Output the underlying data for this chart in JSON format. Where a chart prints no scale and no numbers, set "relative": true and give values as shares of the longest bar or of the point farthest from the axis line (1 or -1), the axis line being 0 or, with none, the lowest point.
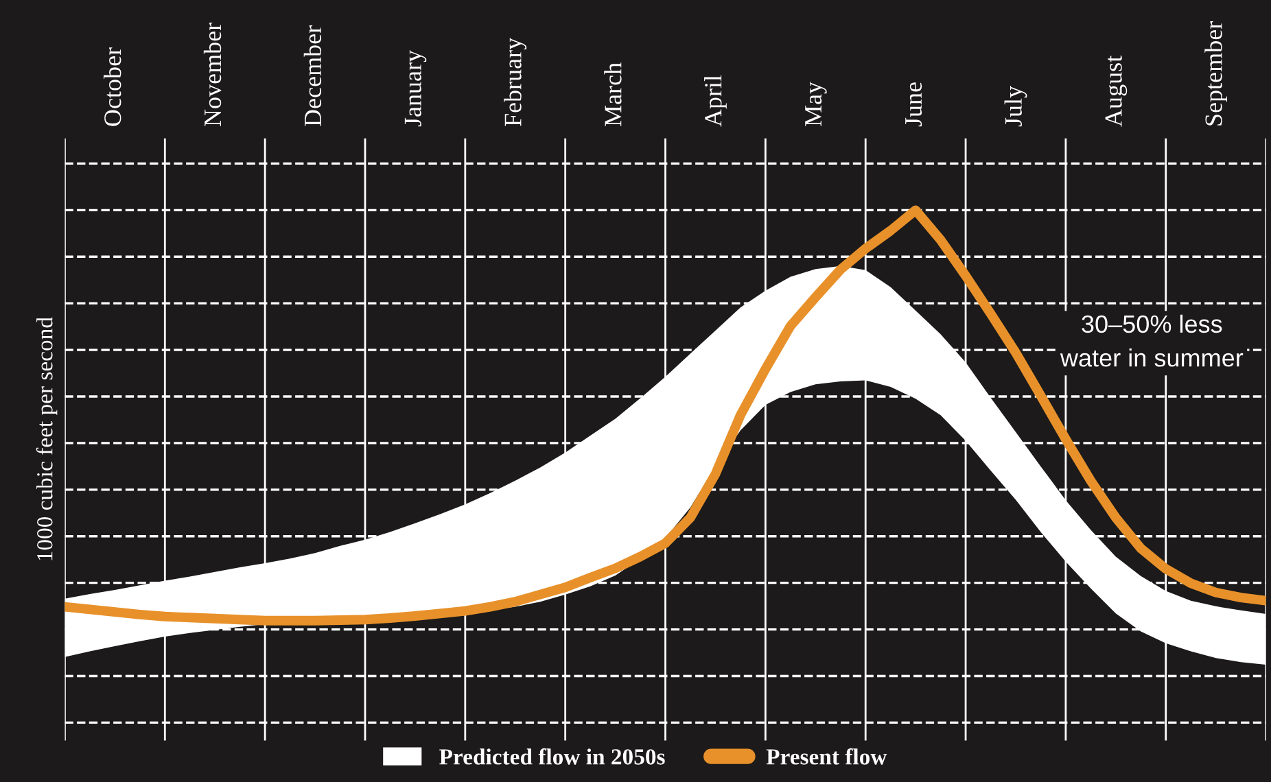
{
  "chart_data": {
    "type": "line",
    "relative": true,
    "ylabel": "1000 cubic feet per second",
    "categories": [
      null,
      null,
      "October",
      null,
      null,
      null,
      "November",
      null,
      null,
      null,
      "December",
      null,
      null,
      null,
      "January",
      null,
      null,
      null,
      "February",
      null,
      null,
      null,
      "March",
      null,
      null,
      null,
      "April",
      null,
      null,
      null,
      "May",
      null,
      null,
      null,
      "June",
      null,
      null,
      null,
      "July",
      null,
      null,
      null,
      "August",
      null,
      null,
      null,
      "September",
      null,
      null
    ],
    "series": [
      {
        "name": "Predicted flow in 2050s",
        "type": "area",
        "color": "#ffffff",
        "values": [
          null,
          null,
          null,
          null,
          null,
          null,
          null,
          null,
          null,
          null,
          null,
          null,
          null,
          null,
          null,
          null,
          null,
          null,
          null,
          null,
          null,
          null,
          null,
          null,
          null,
          null,
          null,
          null,
          null,
          null,
          null,
          null,
          null,
          null,
          null,
          null,
          null,
          null,
          null,
          null,
          null,
          null,
          null,
          null,
          null,
          null,
          null,
          null,
          null
        ],
        "lower": [
          0.128,
          0.139,
          0.149,
          0.159,
          0.168,
          0.175,
          0.181,
          0.187,
          0.192,
          0.195,
          0.197,
          0.198,
          0.199,
          0.202,
          0.205,
          0.209,
          0.213,
          0.219,
          0.226,
          0.236,
          0.25,
          0.266,
          0.287,
          0.32,
          0.36,
          0.42,
          0.5,
          0.57,
          0.62,
          0.645,
          0.66,
          0.666,
          0.668,
          0.655,
          0.632,
          0.6,
          0.55,
          0.492,
          0.435,
          0.372,
          0.314,
          0.262,
          0.213,
          0.178,
          0.155,
          0.139,
          0.126,
          0.118,
          0.113
        ],
        "upper": [
          0.242,
          0.251,
          0.259,
          0.268,
          0.277,
          0.285,
          0.294,
          0.303,
          0.311,
          0.32,
          0.331,
          0.345,
          0.357,
          0.372,
          0.389,
          0.407,
          0.426,
          0.448,
          0.472,
          0.498,
          0.527,
          0.56,
          0.593,
          0.633,
          0.675,
          0.72,
          0.765,
          0.81,
          0.843,
          0.87,
          0.885,
          0.891,
          0.883,
          0.85,
          0.804,
          0.758,
          0.703,
          0.634,
          0.567,
          0.5,
          0.434,
          0.376,
          0.324,
          0.286,
          0.257,
          0.238,
          0.227,
          0.219,
          0.212
        ]
      },
      {
        "name": "Present flow",
        "color": "#e8912a",
        "values": [
          0.226,
          0.221,
          0.216,
          0.211,
          0.207,
          0.205,
          0.203,
          0.201,
          0.199,
          0.199,
          0.199,
          0.2,
          0.201,
          0.204,
          0.208,
          0.213,
          0.218,
          0.226,
          0.236,
          0.25,
          0.264,
          0.283,
          0.301,
          0.324,
          0.35,
          0.4,
          0.485,
          0.6,
          0.69,
          0.774,
          0.83,
          0.884,
          0.925,
          0.96,
          1.0,
          0.942,
          0.872,
          0.798,
          0.722,
          0.638,
          0.553,
          0.472,
          0.4,
          0.34,
          0.3,
          0.272,
          0.254,
          0.244,
          0.238
        ]
      }
    ],
    "annotations": [
      "30–50% less\nwater in summer"
    ],
    "grid": true,
    "legend": "bottom",
    "marker": "none"
  }
}
